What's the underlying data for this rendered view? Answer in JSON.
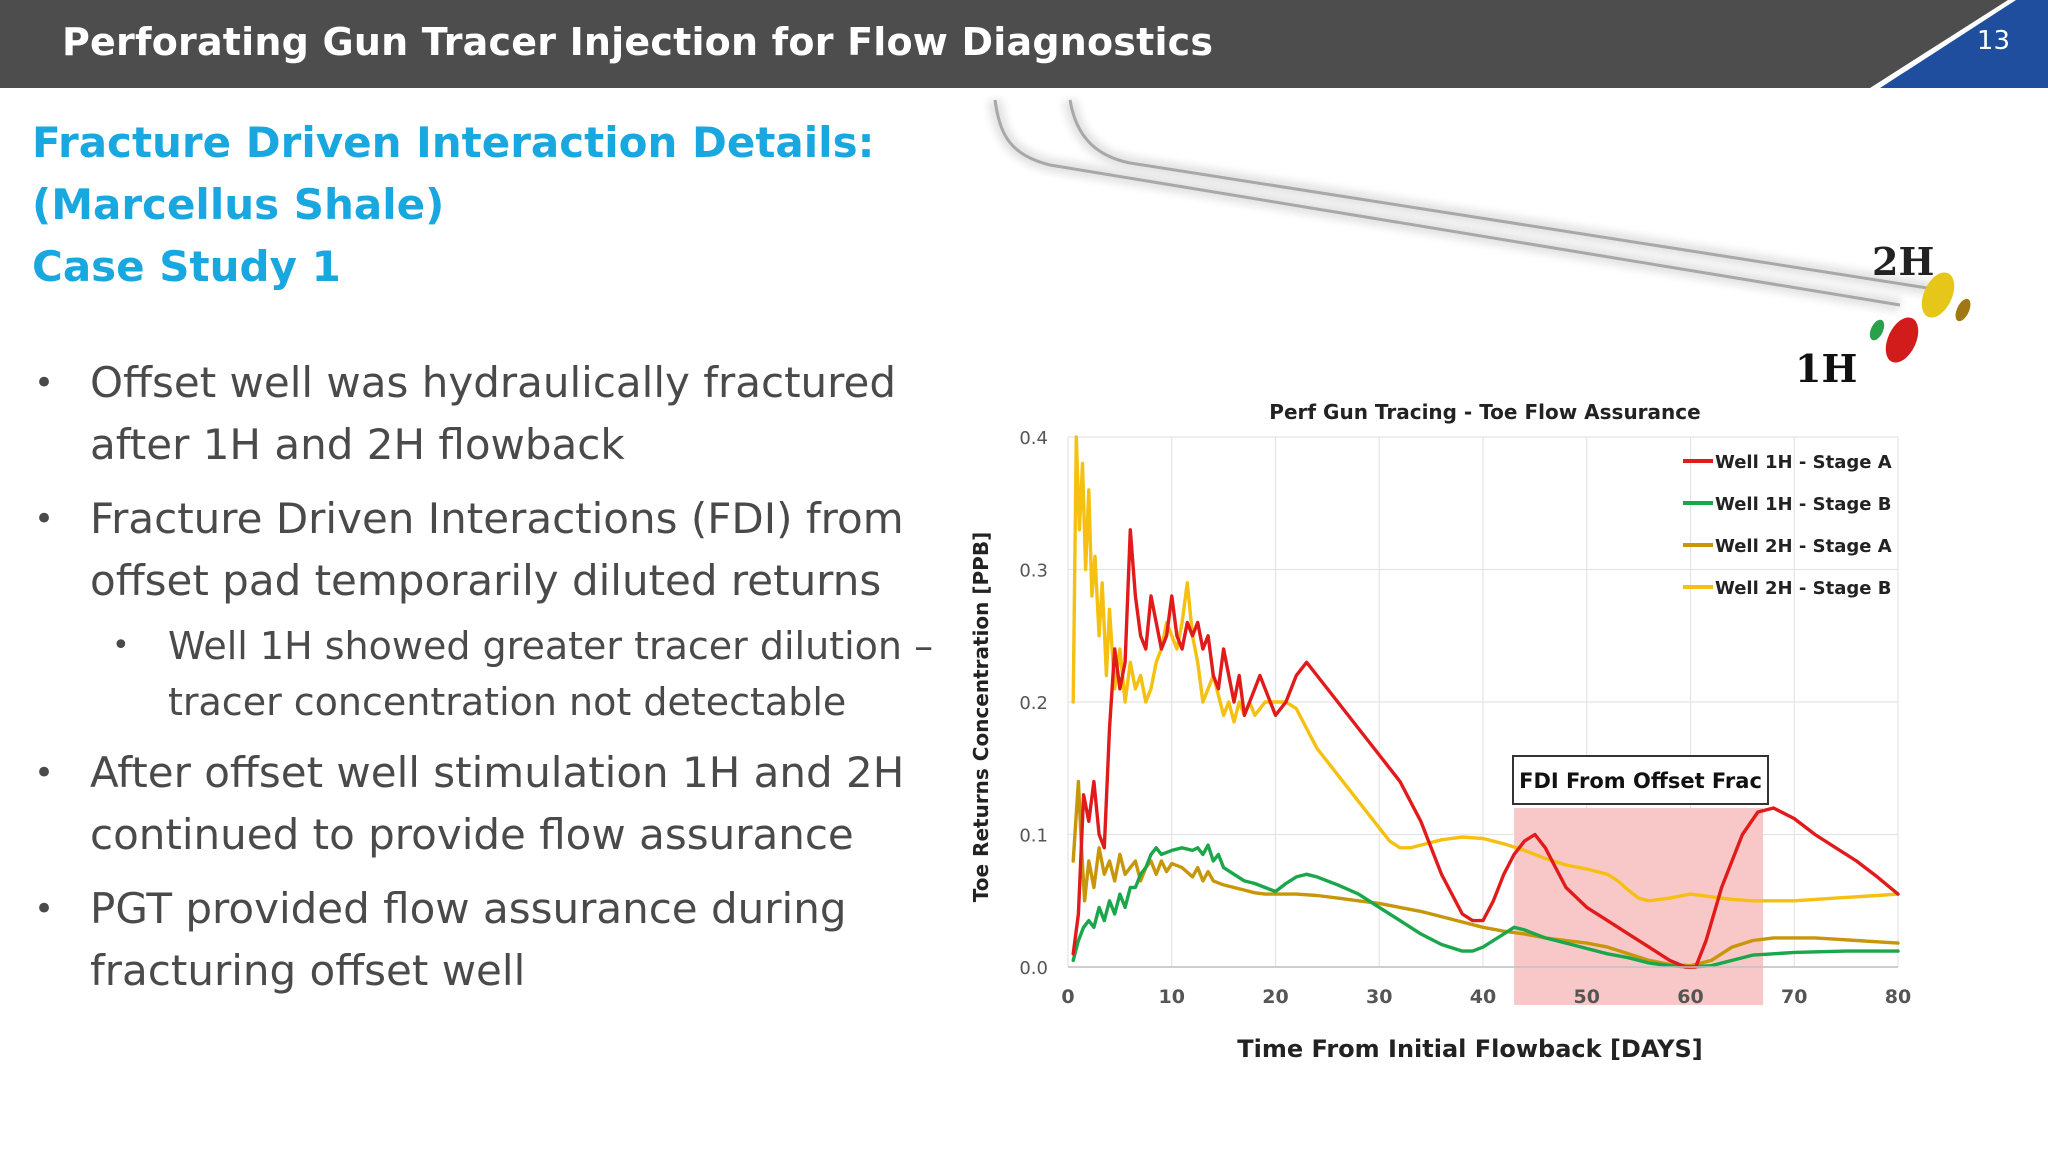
{
  "header": {
    "title": "Perforating Gun Tracer Injection for Flow Diagnostics",
    "page_number": "13",
    "colors": {
      "bar": "#4d4d4d",
      "accent": "#1f4e9e"
    }
  },
  "subtitle": {
    "line1": "Fracture Driven Interaction Details:",
    "line2": "(Marcellus Shale)",
    "line3": "Case Study 1"
  },
  "bullets": [
    {
      "lines": [
        "Offset well was hydraulically fractured",
        "after 1H and 2H flowback"
      ]
    },
    {
      "lines": [
        "Fracture Driven Interactions (FDI) from",
        "offset pad temporarily diluted returns"
      ]
    },
    {
      "lines": [
        "Well 1H showed greater tracer dilution –",
        "tracer concentration not detectable"
      ]
    },
    {
      "lines": [
        "After offset well stimulation 1H and 2H",
        "continued to provide flow assurance"
      ]
    },
    {
      "lines": [
        "PGT provided flow assurance during",
        "fracturing offset well"
      ]
    }
  ],
  "well_graphic": {
    "label_2h": "2H",
    "label_1h": "1H"
  },
  "chart_data": {
    "type": "line",
    "title": "Perf Gun Tracing - Toe Flow Assurance",
    "xlabel": "Time From Initial Flowback [DAYS]",
    "ylabel": "Toe Returns Concentration [PPB]",
    "xlim": [
      0,
      80
    ],
    "ylim": [
      0,
      0.4
    ],
    "x_ticks": [
      "0",
      "10",
      "20",
      "30",
      "40",
      "50",
      "60",
      "70",
      "80"
    ],
    "y_ticks": [
      "0.0",
      "0.1",
      "0.2",
      "0.3",
      "0.4"
    ],
    "grid": true,
    "legend_position": "top-right",
    "annotation": {
      "label": "FDI From Offset Frac",
      "x_start": 43,
      "x_end": 67,
      "color": "#f8c8c8"
    },
    "series": [
      {
        "name": "Well 1H - Stage A",
        "color": "#e11b1b",
        "points": [
          [
            0.5,
            0.01
          ],
          [
            1,
            0.04
          ],
          [
            1.5,
            0.13
          ],
          [
            2,
            0.11
          ],
          [
            2.5,
            0.14
          ],
          [
            3,
            0.1
          ],
          [
            3.5,
            0.09
          ],
          [
            4,
            0.18
          ],
          [
            4.5,
            0.24
          ],
          [
            5,
            0.21
          ],
          [
            5.5,
            0.23
          ],
          [
            6,
            0.33
          ],
          [
            6.5,
            0.28
          ],
          [
            7,
            0.25
          ],
          [
            7.5,
            0.24
          ],
          [
            8,
            0.28
          ],
          [
            8.5,
            0.26
          ],
          [
            9,
            0.24
          ],
          [
            9.5,
            0.25
          ],
          [
            10,
            0.28
          ],
          [
            10.5,
            0.25
          ],
          [
            11,
            0.24
          ],
          [
            11.5,
            0.26
          ],
          [
            12,
            0.25
          ],
          [
            12.5,
            0.26
          ],
          [
            13,
            0.24
          ],
          [
            13.5,
            0.25
          ],
          [
            14,
            0.22
          ],
          [
            14.5,
            0.21
          ],
          [
            15,
            0.24
          ],
          [
            15.5,
            0.22
          ],
          [
            16,
            0.2
          ],
          [
            16.5,
            0.22
          ],
          [
            17,
            0.19
          ],
          [
            17.5,
            0.2
          ],
          [
            18,
            0.21
          ],
          [
            18.5,
            0.22
          ],
          [
            19,
            0.21
          ],
          [
            19.5,
            0.2
          ],
          [
            20,
            0.19
          ],
          [
            21,
            0.2
          ],
          [
            22,
            0.22
          ],
          [
            23,
            0.23
          ],
          [
            24,
            0.22
          ],
          [
            26,
            0.2
          ],
          [
            28,
            0.18
          ],
          [
            30,
            0.16
          ],
          [
            32,
            0.14
          ],
          [
            34,
            0.11
          ],
          [
            36,
            0.07
          ],
          [
            38,
            0.04
          ],
          [
            39,
            0.035
          ],
          [
            40,
            0.035
          ],
          [
            41,
            0.05
          ],
          [
            42,
            0.07
          ],
          [
            43,
            0.085
          ],
          [
            44,
            0.095
          ],
          [
            45,
            0.1
          ],
          [
            46,
            0.09
          ],
          [
            47,
            0.075
          ],
          [
            48,
            0.06
          ],
          [
            50,
            0.045
          ],
          [
            52,
            0.035
          ],
          [
            54,
            0.025
          ],
          [
            56,
            0.015
          ],
          [
            58,
            0.005
          ],
          [
            59.5,
            0
          ],
          [
            60.5,
            0
          ],
          [
            61.5,
            0.02
          ],
          [
            63,
            0.06
          ],
          [
            65,
            0.1
          ],
          [
            66.5,
            0.117
          ],
          [
            68,
            0.12
          ],
          [
            70,
            0.112
          ],
          [
            72,
            0.1
          ],
          [
            74,
            0.09
          ],
          [
            76,
            0.08
          ],
          [
            78,
            0.068
          ],
          [
            80,
            0.055
          ]
        ]
      },
      {
        "name": "Well 1H - Stage B",
        "color": "#1aa64b",
        "points": [
          [
            0.5,
            0.005
          ],
          [
            1,
            0.02
          ],
          [
            1.5,
            0.03
          ],
          [
            2,
            0.035
          ],
          [
            2.5,
            0.03
          ],
          [
            3,
            0.045
          ],
          [
            3.5,
            0.035
          ],
          [
            4,
            0.05
          ],
          [
            4.5,
            0.04
          ],
          [
            5,
            0.055
          ],
          [
            5.5,
            0.045
          ],
          [
            6,
            0.06
          ],
          [
            6.5,
            0.06
          ],
          [
            7,
            0.07
          ],
          [
            7.5,
            0.075
          ],
          [
            8,
            0.085
          ],
          [
            8.5,
            0.09
          ],
          [
            9,
            0.085
          ],
          [
            10,
            0.088
          ],
          [
            11,
            0.09
          ],
          [
            12,
            0.088
          ],
          [
            12.5,
            0.09
          ],
          [
            13,
            0.085
          ],
          [
            13.5,
            0.092
          ],
          [
            14,
            0.08
          ],
          [
            14.5,
            0.085
          ],
          [
            15,
            0.075
          ],
          [
            16,
            0.07
          ],
          [
            17,
            0.065
          ],
          [
            18,
            0.063
          ],
          [
            19,
            0.06
          ],
          [
            20,
            0.057
          ],
          [
            21,
            0.063
          ],
          [
            22,
            0.068
          ],
          [
            23,
            0.07
          ],
          [
            24,
            0.068
          ],
          [
            26,
            0.062
          ],
          [
            28,
            0.055
          ],
          [
            30,
            0.045
          ],
          [
            32,
            0.035
          ],
          [
            34,
            0.025
          ],
          [
            36,
            0.017
          ],
          [
            38,
            0.012
          ],
          [
            39,
            0.012
          ],
          [
            40,
            0.015
          ],
          [
            41,
            0.02
          ],
          [
            42,
            0.025
          ],
          [
            43,
            0.03
          ],
          [
            44,
            0.028
          ],
          [
            46,
            0.022
          ],
          [
            48,
            0.018
          ],
          [
            50,
            0.014
          ],
          [
            52,
            0.01
          ],
          [
            54,
            0.007
          ],
          [
            56,
            0.003
          ],
          [
            58,
            0.001
          ],
          [
            60,
            0
          ],
          [
            62,
            0.001
          ],
          [
            64,
            0.005
          ],
          [
            66,
            0.009
          ],
          [
            68,
            0.01
          ],
          [
            70,
            0.011
          ],
          [
            75,
            0.012
          ],
          [
            80,
            0.012
          ]
        ]
      },
      {
        "name": "Well 2H - Stage A",
        "color": "#c8960a",
        "points": [
          [
            0.5,
            0.08
          ],
          [
            1,
            0.14
          ],
          [
            1.3,
            0.09
          ],
          [
            1.6,
            0.05
          ],
          [
            2,
            0.08
          ],
          [
            2.5,
            0.06
          ],
          [
            3,
            0.09
          ],
          [
            3.5,
            0.07
          ],
          [
            4,
            0.08
          ],
          [
            4.5,
            0.065
          ],
          [
            5,
            0.085
          ],
          [
            5.5,
            0.07
          ],
          [
            6,
            0.075
          ],
          [
            6.5,
            0.08
          ],
          [
            7,
            0.065
          ],
          [
            7.5,
            0.075
          ],
          [
            8,
            0.08
          ],
          [
            8.5,
            0.07
          ],
          [
            9,
            0.08
          ],
          [
            9.5,
            0.072
          ],
          [
            10,
            0.078
          ],
          [
            11,
            0.075
          ],
          [
            12,
            0.068
          ],
          [
            12.5,
            0.075
          ],
          [
            13,
            0.065
          ],
          [
            13.5,
            0.072
          ],
          [
            14,
            0.065
          ],
          [
            15,
            0.062
          ],
          [
            16,
            0.06
          ],
          [
            17,
            0.058
          ],
          [
            18,
            0.056
          ],
          [
            19,
            0.055
          ],
          [
            20,
            0.055
          ],
          [
            22,
            0.055
          ],
          [
            24,
            0.054
          ],
          [
            26,
            0.052
          ],
          [
            28,
            0.05
          ],
          [
            30,
            0.048
          ],
          [
            32,
            0.045
          ],
          [
            34,
            0.042
          ],
          [
            36,
            0.038
          ],
          [
            38,
            0.034
          ],
          [
            40,
            0.03
          ],
          [
            42,
            0.027
          ],
          [
            44,
            0.025
          ],
          [
            46,
            0.022
          ],
          [
            48,
            0.02
          ],
          [
            50,
            0.018
          ],
          [
            52,
            0.015
          ],
          [
            54,
            0.01
          ],
          [
            56,
            0.005
          ],
          [
            58,
            0.002
          ],
          [
            60,
            0.001
          ],
          [
            62,
            0.005
          ],
          [
            63,
            0.01
          ],
          [
            64,
            0.015
          ],
          [
            66,
            0.02
          ],
          [
            68,
            0.022
          ],
          [
            70,
            0.022
          ],
          [
            72,
            0.022
          ],
          [
            74,
            0.021
          ],
          [
            76,
            0.02
          ],
          [
            78,
            0.019
          ],
          [
            80,
            0.018
          ]
        ]
      },
      {
        "name": "Well 2H - Stage B",
        "color": "#f5c010",
        "points": [
          [
            0.5,
            0.2
          ],
          [
            0.8,
            0.4
          ],
          [
            1.1,
            0.33
          ],
          [
            1.4,
            0.38
          ],
          [
            1.7,
            0.3
          ],
          [
            2,
            0.36
          ],
          [
            2.3,
            0.28
          ],
          [
            2.6,
            0.31
          ],
          [
            3,
            0.25
          ],
          [
            3.3,
            0.29
          ],
          [
            3.7,
            0.22
          ],
          [
            4,
            0.27
          ],
          [
            4.5,
            0.21
          ],
          [
            5,
            0.24
          ],
          [
            5.5,
            0.2
          ],
          [
            6,
            0.23
          ],
          [
            6.5,
            0.21
          ],
          [
            7,
            0.22
          ],
          [
            7.5,
            0.2
          ],
          [
            8,
            0.21
          ],
          [
            8.5,
            0.23
          ],
          [
            9,
            0.24
          ],
          [
            9.5,
            0.26
          ],
          [
            10,
            0.25
          ],
          [
            10.5,
            0.24
          ],
          [
            11,
            0.26
          ],
          [
            11.5,
            0.29
          ],
          [
            12,
            0.25
          ],
          [
            12.5,
            0.23
          ],
          [
            13,
            0.2
          ],
          [
            14,
            0.22
          ],
          [
            15,
            0.19
          ],
          [
            15.5,
            0.2
          ],
          [
            16,
            0.185
          ],
          [
            16.5,
            0.2
          ],
          [
            17,
            0.19
          ],
          [
            17.5,
            0.2
          ],
          [
            18,
            0.19
          ],
          [
            19,
            0.2
          ],
          [
            20,
            0.2
          ],
          [
            21,
            0.2
          ],
          [
            22,
            0.195
          ],
          [
            23,
            0.18
          ],
          [
            24,
            0.165
          ],
          [
            26,
            0.145
          ],
          [
            28,
            0.125
          ],
          [
            30,
            0.105
          ],
          [
            31,
            0.095
          ],
          [
            32,
            0.09
          ],
          [
            33,
            0.09
          ],
          [
            34,
            0.092
          ],
          [
            36,
            0.096
          ],
          [
            38,
            0.098
          ],
          [
            40,
            0.097
          ],
          [
            42,
            0.093
          ],
          [
            44,
            0.088
          ],
          [
            46,
            0.082
          ],
          [
            48,
            0.077
          ],
          [
            50,
            0.074
          ],
          [
            52,
            0.07
          ],
          [
            53,
            0.065
          ],
          [
            54,
            0.058
          ],
          [
            55,
            0.052
          ],
          [
            56,
            0.05
          ],
          [
            58,
            0.052
          ],
          [
            60,
            0.055
          ],
          [
            62,
            0.053
          ],
          [
            64,
            0.051
          ],
          [
            66,
            0.05
          ],
          [
            68,
            0.05
          ],
          [
            70,
            0.05
          ],
          [
            72,
            0.051
          ],
          [
            74,
            0.052
          ],
          [
            76,
            0.053
          ],
          [
            78,
            0.054
          ],
          [
            80,
            0.055
          ]
        ]
      }
    ]
  }
}
